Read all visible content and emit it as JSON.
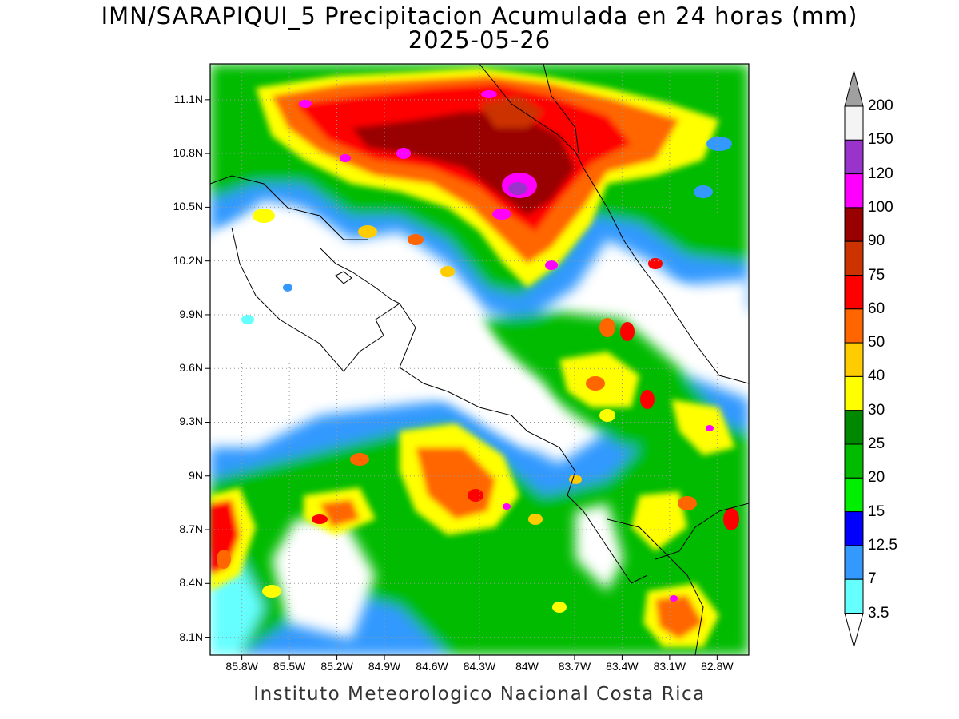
{
  "header": {
    "title": "IMN/SARAPIQUI_5 Precipitacion Acumulada en 24 horas (mm)",
    "date": "2025-05-26"
  },
  "footer": {
    "credit": "Instituto Meteorologico Nacional Costa Rica"
  },
  "map": {
    "lat_labels": [
      "11.1N",
      "10.8N",
      "10.5N",
      "10.2N",
      "9.9N",
      "9.6N",
      "9.3N",
      "9N",
      "8.7N",
      "8.4N",
      "8.1N"
    ],
    "lon_labels": [
      "85.8W",
      "85.5W",
      "85.2W",
      "84.9W",
      "84.6W",
      "84.3W",
      "84W",
      "83.7W",
      "83.4W",
      "83.1W",
      "82.8W"
    ],
    "grid": "dotted",
    "extent": {
      "lon_min": -86.0,
      "lon_max": -82.6,
      "lat_min": 8.0,
      "lat_max": 11.3
    }
  },
  "legend": {
    "levels": [
      "200",
      "150",
      "120",
      "100",
      "90",
      "75",
      "60",
      "50",
      "40",
      "30",
      "25",
      "20",
      "15",
      "12.5",
      "7",
      "3.5"
    ],
    "colors": [
      "#a0a0a0",
      "#f4f4f4",
      "#9933cc",
      "#ff00ff",
      "#990000",
      "#cc3300",
      "#ff0000",
      "#ff6600",
      "#ffcc00",
      "#ffff00",
      "#008800",
      "#00bb00",
      "#00ee00",
      "#0000ff",
      "#3399ff",
      "#66ffff"
    ]
  }
}
